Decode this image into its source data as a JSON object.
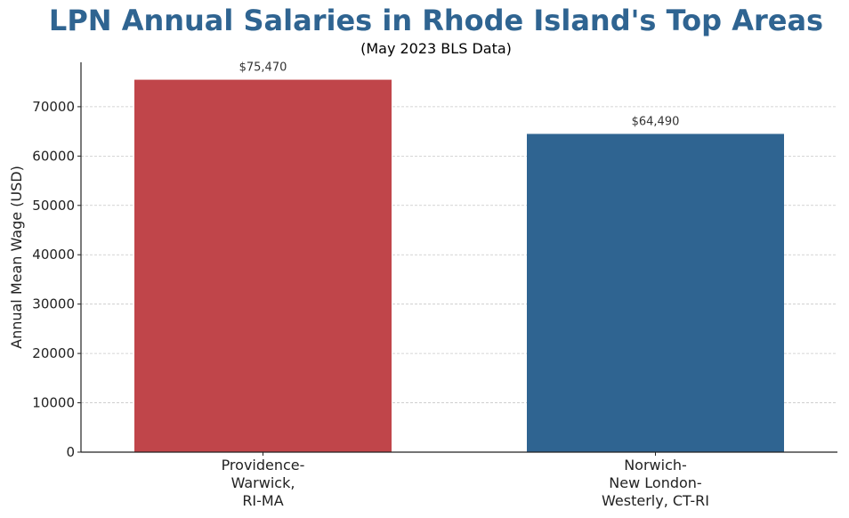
{
  "chart_data": {
    "type": "bar",
    "title": "LPN Annual Salaries in Rhode Island's Top Areas",
    "subtitle": "(May 2023 BLS Data)",
    "xlabel": "",
    "ylabel": "Annual Mean Wage (USD)",
    "categories": [
      [
        "Providence-",
        "Warwick,",
        "RI-MA"
      ],
      [
        "Norwich-",
        "New London-",
        "Westerly, CT-RI"
      ]
    ],
    "values": [
      75470,
      64490
    ],
    "value_labels": [
      "$75,470",
      "$64,490"
    ],
    "colors": [
      "#c0454a",
      "#2f6491"
    ],
    "ylim": [
      0,
      79000
    ],
    "yticks": [
      0,
      10000,
      20000,
      30000,
      40000,
      50000,
      60000,
      70000
    ],
    "grid": "horizontal-dashed",
    "legend": "none"
  }
}
